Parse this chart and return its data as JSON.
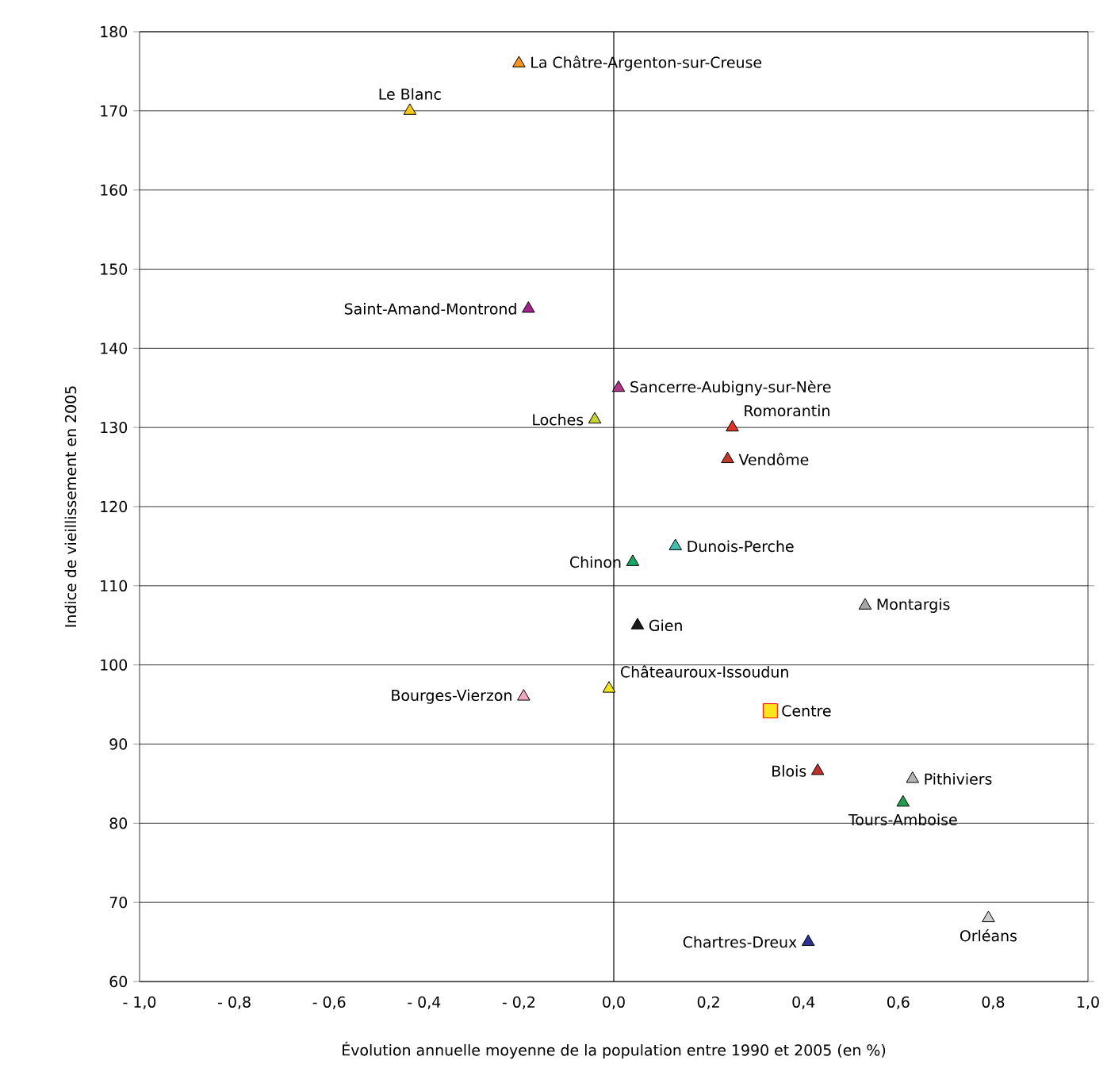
{
  "chart_data": {
    "type": "scatter",
    "xlabel": "Évolution annuelle moyenne de la population entre 1990 et 2005 (en %)",
    "ylabel": "Indice de vieillissement en 2005",
    "xlim": [
      -1.0,
      1.0
    ],
    "ylim": [
      60,
      180
    ],
    "xticks": [
      {
        "value": -1.0,
        "label": "- 1,0"
      },
      {
        "value": -0.8,
        "label": "- 0,8"
      },
      {
        "value": -0.6,
        "label": "- 0,6"
      },
      {
        "value": -0.4,
        "label": "- 0,4"
      },
      {
        "value": -0.2,
        "label": "- 0,2"
      },
      {
        "value": 0.0,
        "label": "0,0"
      },
      {
        "value": 0.2,
        "label": "0,2"
      },
      {
        "value": 0.4,
        "label": "0,4"
      },
      {
        "value": 0.6,
        "label": "0,6"
      },
      {
        "value": 0.8,
        "label": "0,8"
      },
      {
        "value": 1.0,
        "label": "1,0"
      }
    ],
    "yticks": [
      60,
      70,
      80,
      90,
      100,
      110,
      120,
      130,
      140,
      150,
      160,
      170,
      180
    ],
    "grid": "y",
    "marker": "triangle",
    "ref_lines": [
      {
        "axis": "x",
        "value": 0,
        "color": "#000000"
      }
    ],
    "series": [
      {
        "name": "La Châtre-Argenton-sur-Creuse",
        "color": "#f7941d",
        "x": [
          -0.2
        ],
        "values": [
          176
        ]
      },
      {
        "name": "Le Blanc",
        "color": "#fcc917",
        "x": [
          -0.43
        ],
        "values": [
          170
        ]
      },
      {
        "name": "Saint-Amand-Montrond",
        "color": "#a3238e",
        "x": [
          -0.18
        ],
        "values": [
          145
        ]
      },
      {
        "name": "Sancerre-Aubigny-sur-Nère",
        "color": "#b5338a",
        "x": [
          0.01
        ],
        "values": [
          135
        ]
      },
      {
        "name": "Loches",
        "color": "#c4d52f",
        "x": [
          -0.04
        ],
        "values": [
          131
        ]
      },
      {
        "name": "Romorantin",
        "color": "#e03127",
        "x": [
          0.25
        ],
        "values": [
          130
        ]
      },
      {
        "name": "Vendôme",
        "color": "#c0392b",
        "x": [
          0.24
        ],
        "values": [
          126
        ]
      },
      {
        "name": "Chinon",
        "color": "#17a665",
        "x": [
          0.04
        ],
        "values": [
          113
        ]
      },
      {
        "name": "Dunois-Perche",
        "color": "#3fbfb4",
        "x": [
          0.13
        ],
        "values": [
          115
        ]
      },
      {
        "name": "Gien",
        "color": "#1a1a1a",
        "x": [
          0.05
        ],
        "values": [
          105
        ]
      },
      {
        "name": "Montargis",
        "color": "#a6a6a6",
        "x": [
          0.53
        ],
        "values": [
          107.5
        ]
      },
      {
        "name": "Châteauroux-Issoudun",
        "color": "#f5e616",
        "x": [
          -0.01
        ],
        "values": [
          97
        ]
      },
      {
        "name": "Bourges-Vierzon",
        "color": "#f2a6c0",
        "x": [
          -0.19
        ],
        "values": [
          96
        ]
      },
      {
        "name": "Centre",
        "color": "#fce51c",
        "marker": "square",
        "x": [
          0.33
        ],
        "values": [
          94.2
        ]
      },
      {
        "name": "Blois",
        "color": "#c0302b",
        "x": [
          0.43
        ],
        "values": [
          86.6
        ]
      },
      {
        "name": "Pithiviers",
        "color": "#b3b3b3",
        "x": [
          0.63
        ],
        "values": [
          85.6
        ]
      },
      {
        "name": "Tours-Amboise",
        "color": "#1ea050",
        "x": [
          0.61
        ],
        "values": [
          82.6
        ]
      },
      {
        "name": "Orléans",
        "color": "#cccccc",
        "x": [
          0.79
        ],
        "values": [
          68
        ]
      },
      {
        "name": "Chartres-Dreux",
        "color": "#2e3192",
        "x": [
          0.41
        ],
        "values": [
          65
        ]
      }
    ]
  }
}
